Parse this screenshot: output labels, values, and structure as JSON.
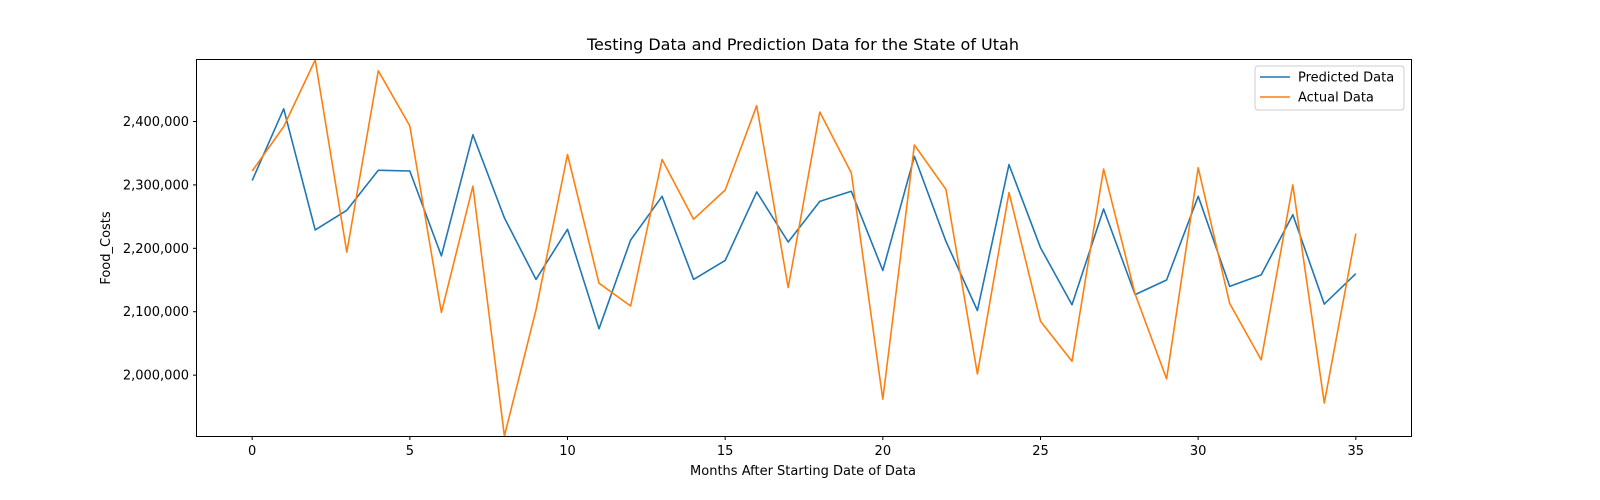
{
  "chart_data": {
    "type": "line",
    "title": "Testing Data and Prediction Data for the State of Utah",
    "xlabel": "Months After Starting Date of Data",
    "ylabel": "Food_Costs",
    "xlim": [
      -1.75,
      36.75
    ],
    "ylim": [
      1904000,
      2497000
    ],
    "x_ticks": [
      0,
      5,
      10,
      15,
      20,
      25,
      30,
      35
    ],
    "y_ticks": [
      2000000,
      2100000,
      2200000,
      2300000,
      2400000
    ],
    "y_tick_labels": [
      "2,000,000",
      "2,100,000",
      "2,200,000",
      "2,300,000",
      "2,400,000"
    ],
    "grid": false,
    "legend_position": "top-right",
    "x": [
      0,
      1,
      2,
      3,
      4,
      5,
      6,
      7,
      8,
      9,
      10,
      11,
      12,
      13,
      14,
      15,
      16,
      17,
      18,
      19,
      20,
      21,
      22,
      23,
      24,
      25,
      26,
      27,
      28,
      29,
      30,
      31,
      32,
      33,
      34,
      35
    ],
    "series": [
      {
        "name": "Predicted Data",
        "color": "#1f77b4",
        "values": [
          2307000,
          2420000,
          2229000,
          2260000,
          2323000,
          2322000,
          2188000,
          2379000,
          2248000,
          2151000,
          2230000,
          2073000,
          2213000,
          2282000,
          2151000,
          2181000,
          2289000,
          2210000,
          2274000,
          2290000,
          2165000,
          2345000,
          2211000,
          2102000,
          2332000,
          2201000,
          2111000,
          2262000,
          2127000,
          2150000,
          2282000,
          2140000,
          2158000,
          2253000,
          2112000,
          2160000
        ]
      },
      {
        "name": "Actual Data",
        "color": "#ff7f0e",
        "values": [
          2322000,
          2392000,
          2497000,
          2194000,
          2480000,
          2393000,
          2099000,
          2298000,
          1904000,
          2103000,
          2348000,
          2145000,
          2109000,
          2340000,
          2246000,
          2292000,
          2425000,
          2138000,
          2415000,
          2319000,
          1962000,
          2363000,
          2293000,
          2002000,
          2288000,
          2085000,
          2022000,
          2325000,
          2128000,
          1994000,
          2327000,
          2113000,
          2024000,
          2300000,
          1956000,
          2223000
        ]
      }
    ]
  }
}
